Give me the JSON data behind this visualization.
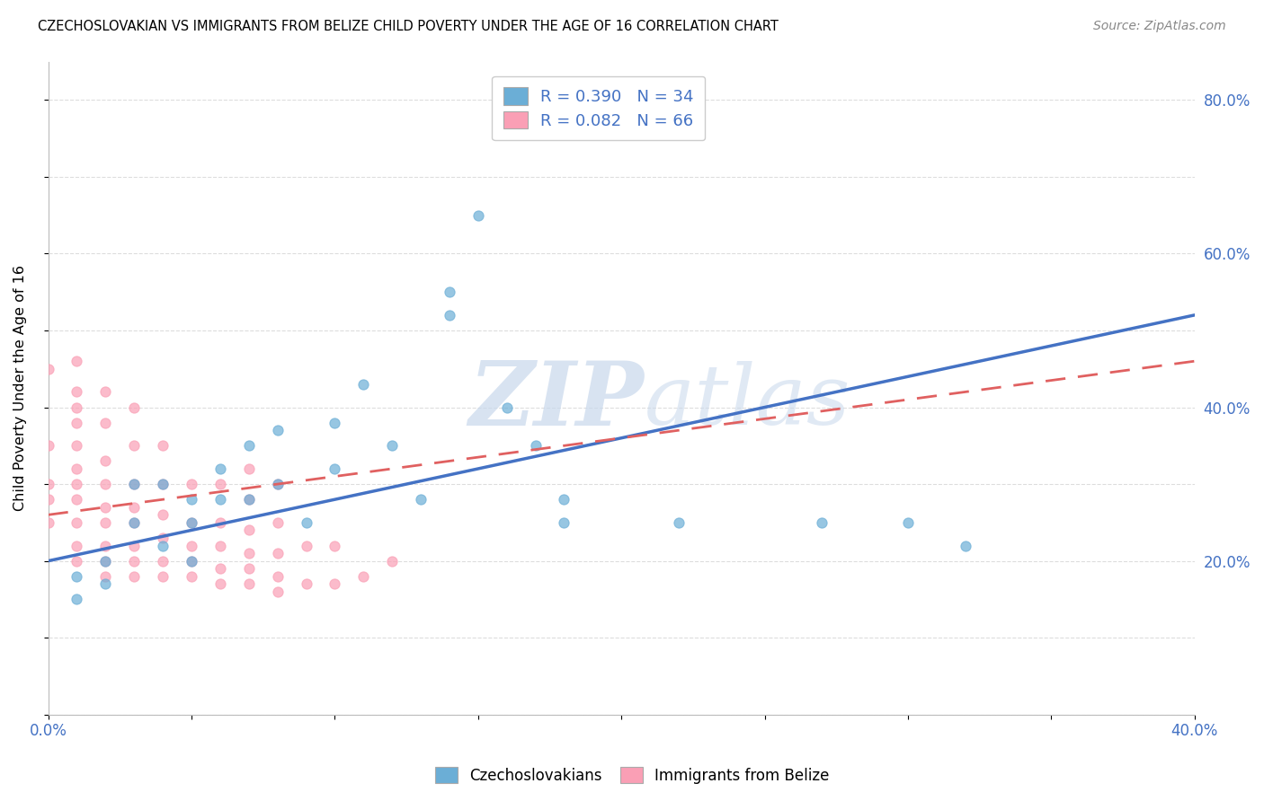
{
  "title": "CZECHOSLOVAKIAN VS IMMIGRANTS FROM BELIZE CHILD POVERTY UNDER THE AGE OF 16 CORRELATION CHART",
  "source": "Source: ZipAtlas.com",
  "ylabel": "Child Poverty Under the Age of 16",
  "xlim": [
    0.0,
    0.4
  ],
  "ylim": [
    0.0,
    0.85
  ],
  "xticks": [
    0.0,
    0.05,
    0.1,
    0.15,
    0.2,
    0.25,
    0.3,
    0.35,
    0.4
  ],
  "yticks": [
    0.0,
    0.1,
    0.2,
    0.3,
    0.4,
    0.5,
    0.6,
    0.7,
    0.8
  ],
  "ytick_labels_right": [
    "",
    "20.0%",
    "40.0%",
    "60.0%",
    "80.0%"
  ],
  "ytick_positions_right": [
    0.0,
    0.2,
    0.4,
    0.6,
    0.8
  ],
  "color_czech": "#6baed6",
  "color_belize": "#fa9fb5",
  "color_czech_line": "#4472c4",
  "color_belize_line": "#e06060",
  "R_czech": 0.39,
  "N_czech": 34,
  "R_belize": 0.082,
  "N_belize": 66,
  "legend_label_czech": "Czechoslovakians",
  "legend_label_belize": "Immigrants from Belize",
  "watermark_zip": "ZIP",
  "watermark_atlas": "atlas",
  "background_color": "#ffffff",
  "grid_color": "#dddddd",
  "axis_color": "#4472c4",
  "czech_scatter_x": [
    0.01,
    0.01,
    0.02,
    0.02,
    0.03,
    0.03,
    0.04,
    0.04,
    0.05,
    0.05,
    0.05,
    0.06,
    0.06,
    0.07,
    0.07,
    0.08,
    0.08,
    0.09,
    0.1,
    0.1,
    0.11,
    0.12,
    0.13,
    0.14,
    0.15,
    0.16,
    0.17,
    0.18,
    0.18,
    0.22,
    0.27,
    0.3,
    0.32,
    0.14
  ],
  "czech_scatter_y": [
    0.18,
    0.15,
    0.2,
    0.17,
    0.3,
    0.25,
    0.3,
    0.22,
    0.28,
    0.25,
    0.2,
    0.32,
    0.28,
    0.35,
    0.28,
    0.37,
    0.3,
    0.25,
    0.32,
    0.38,
    0.43,
    0.35,
    0.28,
    0.55,
    0.65,
    0.4,
    0.35,
    0.28,
    0.25,
    0.25,
    0.25,
    0.25,
    0.22,
    0.52
  ],
  "belize_scatter_x": [
    0.0,
    0.0,
    0.0,
    0.0,
    0.0,
    0.01,
    0.01,
    0.01,
    0.01,
    0.01,
    0.01,
    0.01,
    0.01,
    0.01,
    0.01,
    0.01,
    0.02,
    0.02,
    0.02,
    0.02,
    0.02,
    0.02,
    0.02,
    0.02,
    0.02,
    0.03,
    0.03,
    0.03,
    0.03,
    0.03,
    0.03,
    0.03,
    0.03,
    0.04,
    0.04,
    0.04,
    0.04,
    0.04,
    0.04,
    0.05,
    0.05,
    0.05,
    0.05,
    0.05,
    0.06,
    0.06,
    0.06,
    0.06,
    0.06,
    0.07,
    0.07,
    0.07,
    0.07,
    0.07,
    0.07,
    0.08,
    0.08,
    0.08,
    0.08,
    0.08,
    0.09,
    0.09,
    0.1,
    0.1,
    0.11,
    0.12
  ],
  "belize_scatter_y": [
    0.25,
    0.28,
    0.3,
    0.35,
    0.45,
    0.2,
    0.22,
    0.25,
    0.28,
    0.3,
    0.32,
    0.35,
    0.38,
    0.4,
    0.42,
    0.46,
    0.18,
    0.2,
    0.22,
    0.25,
    0.27,
    0.3,
    0.33,
    0.38,
    0.42,
    0.18,
    0.2,
    0.22,
    0.25,
    0.27,
    0.3,
    0.35,
    0.4,
    0.18,
    0.2,
    0.23,
    0.26,
    0.3,
    0.35,
    0.18,
    0.2,
    0.22,
    0.25,
    0.3,
    0.17,
    0.19,
    0.22,
    0.25,
    0.3,
    0.17,
    0.19,
    0.21,
    0.24,
    0.28,
    0.32,
    0.16,
    0.18,
    0.21,
    0.25,
    0.3,
    0.17,
    0.22,
    0.17,
    0.22,
    0.18,
    0.2
  ],
  "trendline_czech_x0": 0.0,
  "trendline_czech_y0": 0.2,
  "trendline_czech_x1": 0.4,
  "trendline_czech_y1": 0.52,
  "trendline_belize_x0": 0.0,
  "trendline_belize_y0": 0.26,
  "trendline_belize_x1": 0.4,
  "trendline_belize_y1": 0.46
}
